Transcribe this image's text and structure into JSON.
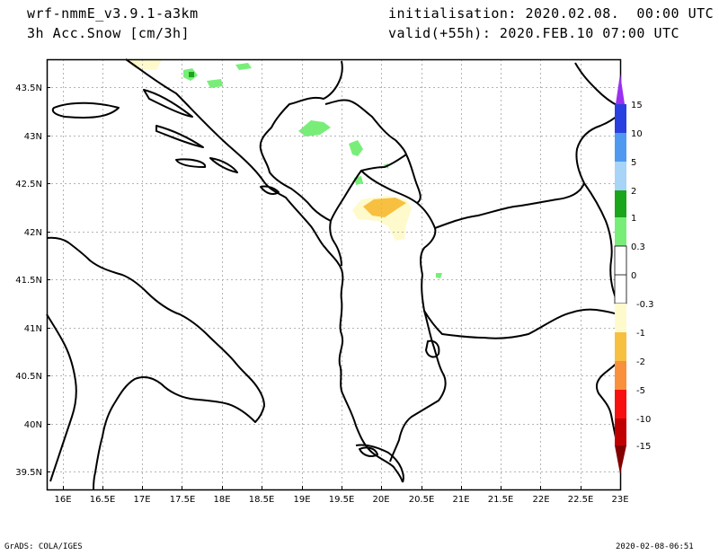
{
  "header": {
    "model": "wrf-nmmE_v3.9.1-a3km",
    "field": "3h Acc.Snow [cm/3h]",
    "initialisation": "initialisation: 2020.02.08.  00:00 UTC",
    "valid": "valid(+55h): 2020.FEB.10 07:00 UTC"
  },
  "footer": {
    "credit": "GrADS: COLA/IGES",
    "timestamp": "2020-02-08-06:51"
  },
  "map": {
    "lat_labels": [
      "43.5N",
      "43N",
      "42.5N",
      "42N",
      "41.5N",
      "41N",
      "40.5N",
      "40N",
      "39.5N"
    ],
    "lon_labels": [
      "16E",
      "16.5E",
      "17E",
      "17.5E",
      "18E",
      "18.5E",
      "19E",
      "19.5E",
      "20E",
      "20.5E",
      "21E",
      "21.5E",
      "22E",
      "22.5E",
      "23E"
    ]
  },
  "colorbar": {
    "labels": [
      "15",
      "10",
      "5",
      "2",
      "1",
      "0.3",
      "0",
      "-0.3",
      "-1",
      "-2",
      "-5",
      "-10",
      "-15"
    ],
    "colors": {
      "violet": "#9a30f0",
      "blue_dark": "#2a3fe0",
      "blue_mid": "#4f9af0",
      "blue_light": "#a8d4f8",
      "green_dark": "#1aa51a",
      "green_light": "#78ee78",
      "yellow_light": "#fffacb",
      "yellow": "#f8c040",
      "orange": "#f8903c",
      "red": "#f81010",
      "red_dark": "#c00000",
      "maroon": "#820000"
    }
  }
}
